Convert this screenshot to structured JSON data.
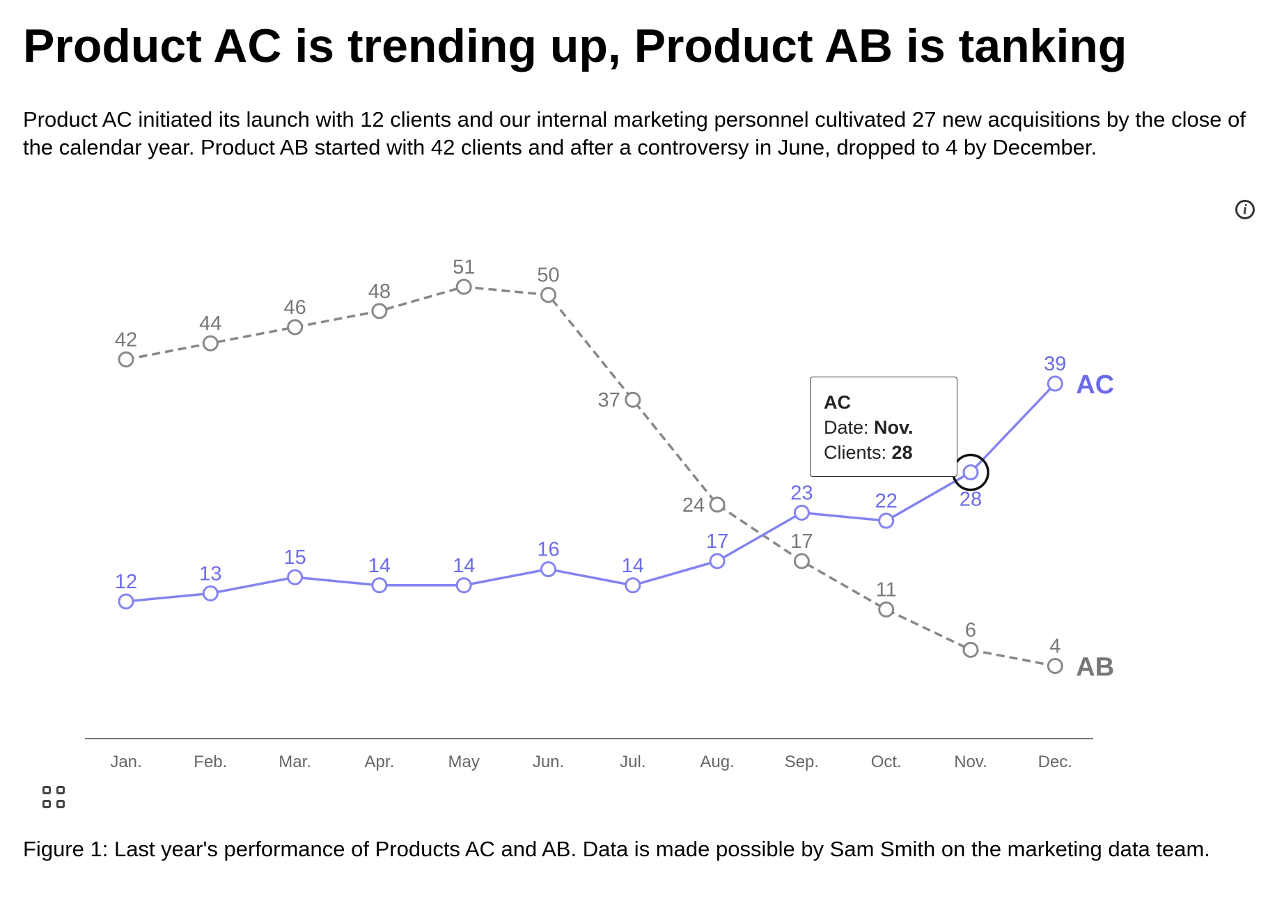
{
  "title": "Product AC is trending up, Product AB is tanking",
  "subtitle": "Product AC initiated its launch with 12 clients and our internal marketing personnel cultivated 27 new acquisitions by the close of the calendar year. Product AB started with 42 clients and after a controversy in June, dropped to 4 by December.",
  "caption": "Figure 1: Last year's performance of Products AC and AB. Data is made possible by Sam Smith on the marketing data team.",
  "info_icon_glyph": "i",
  "tooltip": {
    "series": "AC",
    "date_label": "Date: ",
    "date_value": "Nov.",
    "clients_label": "Clients: ",
    "clients_value": "28"
  },
  "chart_data": {
    "type": "line",
    "categories": [
      "Jan.",
      "Feb.",
      "Mar.",
      "Apr.",
      "May",
      "Jun.",
      "Jul.",
      "Aug.",
      "Sep.",
      "Oct.",
      "Nov.",
      "Dec."
    ],
    "ylim": [
      0,
      51
    ],
    "grid": false,
    "legend": "end-of-line labels",
    "highlight": {
      "series": "AC",
      "category": "Nov."
    },
    "series": [
      {
        "name": "AB",
        "color": "#888888",
        "label_color": "#777777",
        "dash": true,
        "values": [
          42,
          44,
          46,
          48,
          51,
          50,
          37,
          24,
          17,
          11,
          6,
          4
        ]
      },
      {
        "name": "AC",
        "color": "#8484f0",
        "label_color": "#6b6bea",
        "dash": false,
        "values": [
          12,
          13,
          15,
          14,
          14,
          16,
          14,
          17,
          23,
          22,
          28,
          39
        ]
      }
    ]
  }
}
